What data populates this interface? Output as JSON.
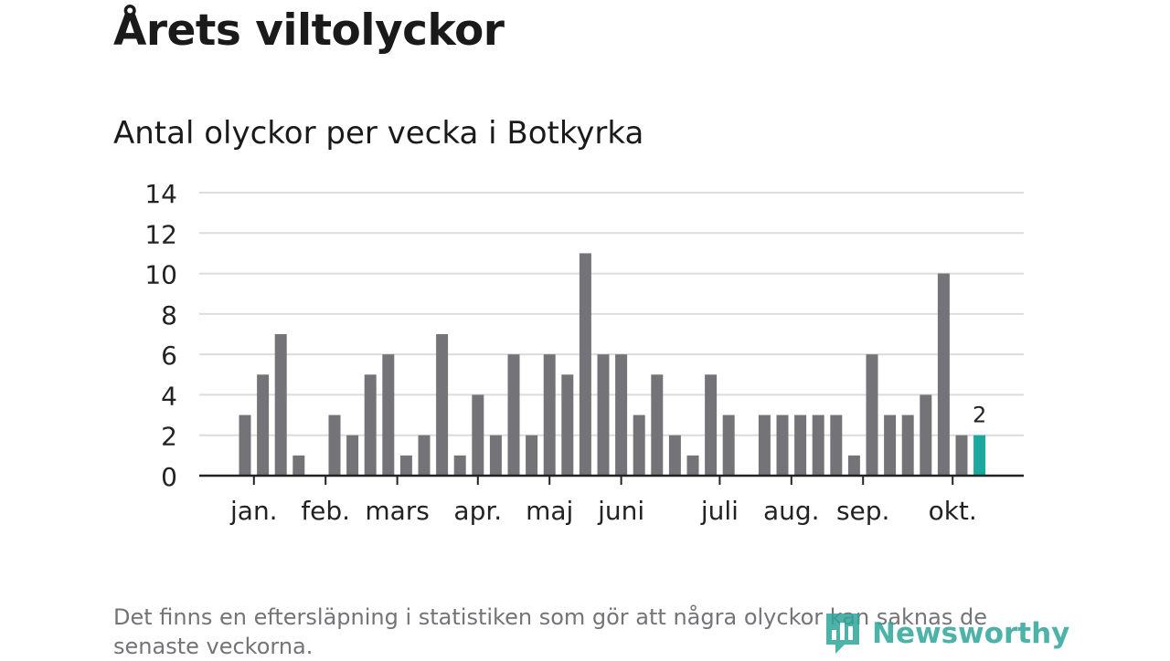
{
  "page": {
    "title": "Årets viltolyckor",
    "subtitle": "Antal olyckor per vecka i Botkyrka",
    "footnote": "Det finns en eftersläpning i statistiken som gör att några olyckor kan saknas de senaste veckorna.",
    "logo_text": "Newsworthy",
    "logo_icon": "newsworthy-logo-icon"
  },
  "colors": {
    "bar": "#747478",
    "highlight": "#1aa99c",
    "grid": "#dcdcdc",
    "axis": "#222222",
    "text": "#222222",
    "logo": "#2fa59a"
  },
  "chart_data": {
    "type": "bar",
    "x": [
      1,
      2,
      3,
      4,
      5,
      6,
      7,
      8,
      9,
      10,
      11,
      12,
      13,
      14,
      15,
      16,
      17,
      18,
      19,
      20,
      21,
      22,
      23,
      24,
      25,
      26,
      27,
      28,
      29,
      30,
      31,
      32,
      33,
      34,
      35,
      36,
      37,
      38,
      39,
      40,
      41,
      42
    ],
    "values": [
      3,
      5,
      7,
      1,
      0,
      3,
      2,
      5,
      6,
      1,
      2,
      7,
      1,
      4,
      2,
      6,
      2,
      6,
      5,
      11,
      6,
      6,
      3,
      5,
      2,
      1,
      5,
      3,
      0,
      3,
      3,
      3,
      3,
      3,
      1,
      6,
      3,
      3,
      4,
      10,
      2,
      2
    ],
    "highlight_index": 41,
    "highlight_label": "2",
    "ylim": [
      0,
      14
    ],
    "yticks": [
      0,
      2,
      4,
      6,
      8,
      10,
      12,
      14
    ],
    "month_labels": [
      {
        "label": "jan.",
        "x": 1.5
      },
      {
        "label": "feb.",
        "x": 5.5
      },
      {
        "label": "mars",
        "x": 9.5
      },
      {
        "label": "apr.",
        "x": 14
      },
      {
        "label": "maj",
        "x": 18
      },
      {
        "label": "juni",
        "x": 22
      },
      {
        "label": "juli",
        "x": 27.5
      },
      {
        "label": "aug.",
        "x": 31.5
      },
      {
        "label": "sep.",
        "x": 35.5
      },
      {
        "label": "okt.",
        "x": 40.5
      }
    ],
    "month_ticks": [
      1.5,
      5.5,
      9.5,
      14,
      18,
      22,
      27.5,
      31.5,
      35.5,
      40.5
    ],
    "grid": true,
    "legend": "none"
  }
}
